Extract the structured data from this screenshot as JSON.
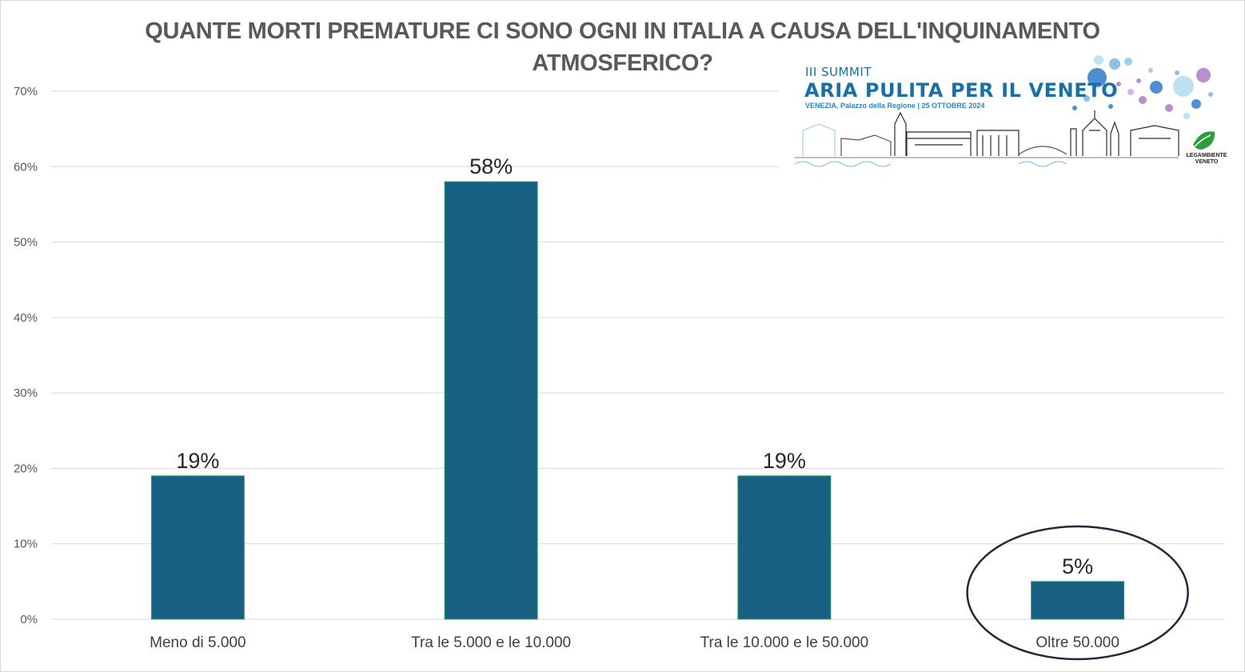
{
  "chart_data": {
    "type": "bar",
    "title_lines": [
      "QUANTE MORTI PREMATURE CI SONO OGNI IN ITALIA A CAUSA DELL'INQUINAMENTO",
      "ATMOSFERICO?"
    ],
    "categories": [
      "Meno di 5.000",
      "Tra le 5.000 e le 10.000",
      "Tra le 10.000 e le 50.000",
      "Oltre 50.000"
    ],
    "values": [
      19,
      58,
      19,
      5
    ],
    "data_labels": [
      "19%",
      "58%",
      "19%",
      "5%"
    ],
    "y_ticks": [
      "0%",
      "10%",
      "20%",
      "30%",
      "40%",
      "50%",
      "60%",
      "70%"
    ],
    "ylim": [
      0,
      70
    ],
    "grid": true,
    "legend": "none",
    "bar_color": "#176082",
    "highlight": {
      "category": "Oltre 50.000",
      "shape": "ellipse",
      "color": "#1b2a3d"
    }
  },
  "logo": {
    "kicker": "III SUMMIT",
    "title": "ARIA PULITA PER IL VENETO",
    "subtitle": "VENEZIA, Palazzo della Regione | 25 OTTOBRE 2024",
    "org_lines": [
      "LEGAMBIENTE",
      "VENETO"
    ],
    "colors": {
      "text": "#1a6fa5",
      "accent_purple": "#b98fcf",
      "accent_blue": "#4f8fd0",
      "accent_light": "#bfe3ee",
      "leaf": "#2e9c3c"
    }
  }
}
